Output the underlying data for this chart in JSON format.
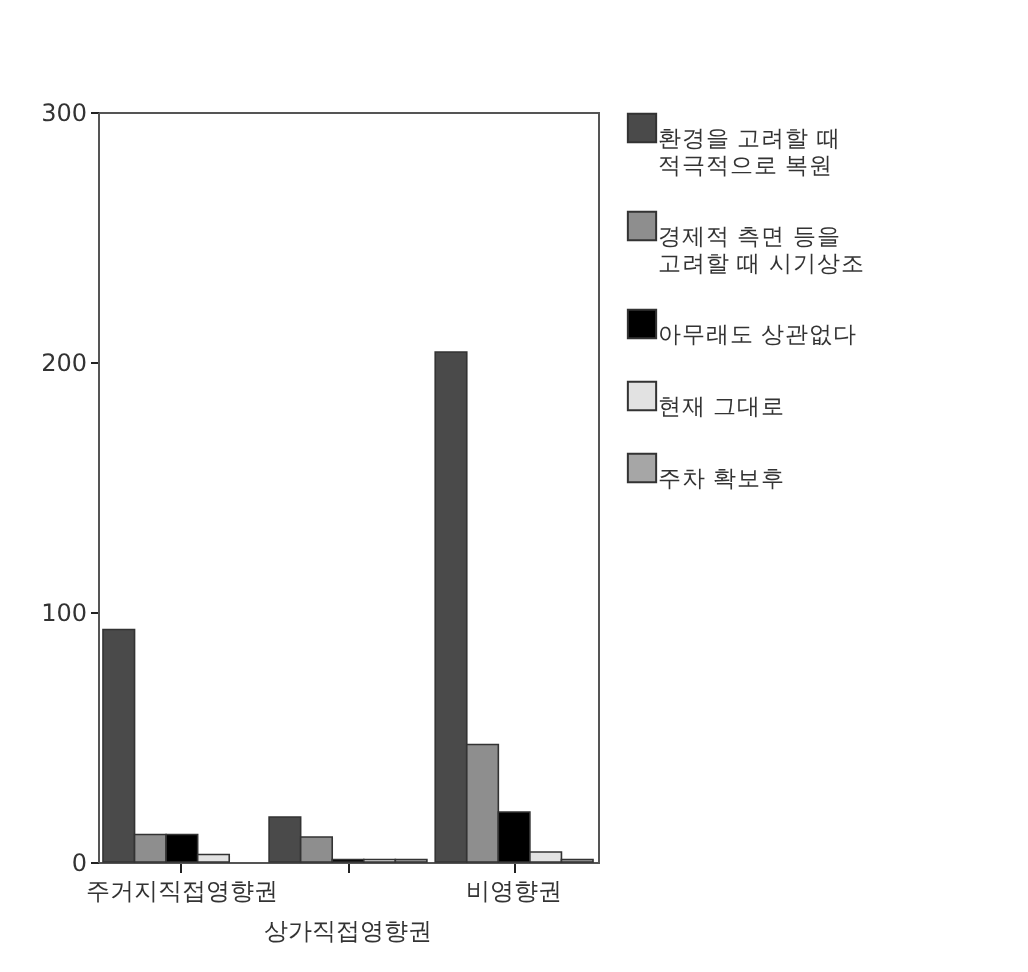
{
  "chart_data": {
    "type": "bar",
    "categories": [
      "주거지직접영향권",
      "상가직접영향권",
      "비영향권"
    ],
    "series": [
      {
        "name": "환경을 고려할 때 적극적으로 복원",
        "color": "#4a4a4a",
        "values": [
          93,
          18,
          204
        ]
      },
      {
        "name": "경제적 측면 등을 고려할 때 시기상조",
        "color": "#8e8e8e",
        "values": [
          11,
          10,
          47
        ]
      },
      {
        "name": "아무래도 상관없다",
        "color": "#000000",
        "values": [
          11,
          1,
          20
        ]
      },
      {
        "name": "현재 그대로",
        "color": "#e2e2e2",
        "values": [
          3,
          1,
          4
        ]
      },
      {
        "name": "주차 확보후",
        "color": "#a6a6a6",
        "values": [
          null,
          1,
          1
        ]
      }
    ],
    "ylim": [
      0,
      300
    ],
    "yticks": [
      0,
      100,
      200,
      300
    ],
    "grid": false,
    "legend": "right"
  }
}
